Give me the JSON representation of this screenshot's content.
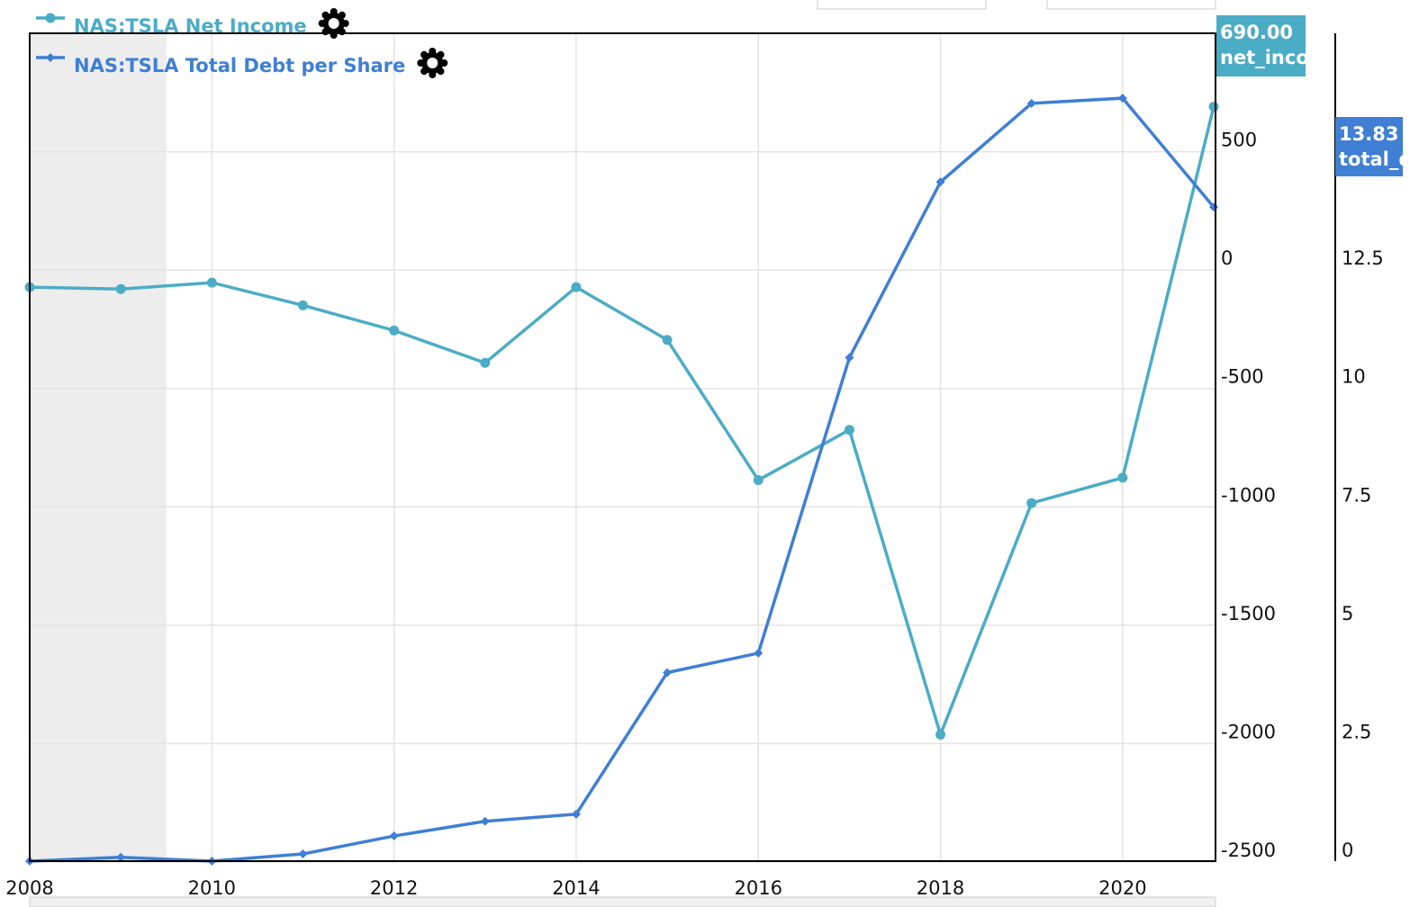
{
  "chart_data": {
    "type": "line",
    "x": [
      2008,
      2009,
      2010,
      2011,
      2012,
      2013,
      2014,
      2015,
      2016,
      2017,
      2018,
      2019,
      2020,
      2021
    ],
    "xlim": [
      2008,
      2021
    ],
    "xticks": [
      2008,
      2010,
      2012,
      2014,
      2016,
      2018,
      2020
    ],
    "ylim": [
      -2500,
      1000
    ],
    "yticks": [
      -2500,
      -2000,
      -1500,
      -1000,
      -500,
      0,
      500
    ],
    "y2lim": [
      0,
      17.5
    ],
    "y2ticks": [
      0,
      2.5,
      5,
      7.5,
      10,
      12.5
    ],
    "grid": true,
    "legend": "top-left",
    "series": [
      {
        "name": "NAS:TSLA Net Income",
        "color": "#4bacc6",
        "marker": "circle",
        "values": [
          -72,
          -80,
          -53,
          -149,
          -255,
          -392,
          -72,
          -295,
          -887,
          -675,
          -1962,
          -984,
          -877,
          690
        ],
        "last_label": "690.00",
        "last_tag": "net_incom"
      },
      {
        "name": "NAS:TSLA Total Debt per Share",
        "color": "#3f7fd4",
        "marker": "diamond",
        "axis": "y2",
        "values": [
          0.02,
          0.1,
          0.02,
          0.17,
          0.55,
          0.86,
          1.01,
          4.0,
          4.41,
          10.65,
          14.36,
          16.02,
          16.13,
          13.83
        ],
        "last_label": "13.83",
        "last_tag": "total_d"
      }
    ]
  }
}
